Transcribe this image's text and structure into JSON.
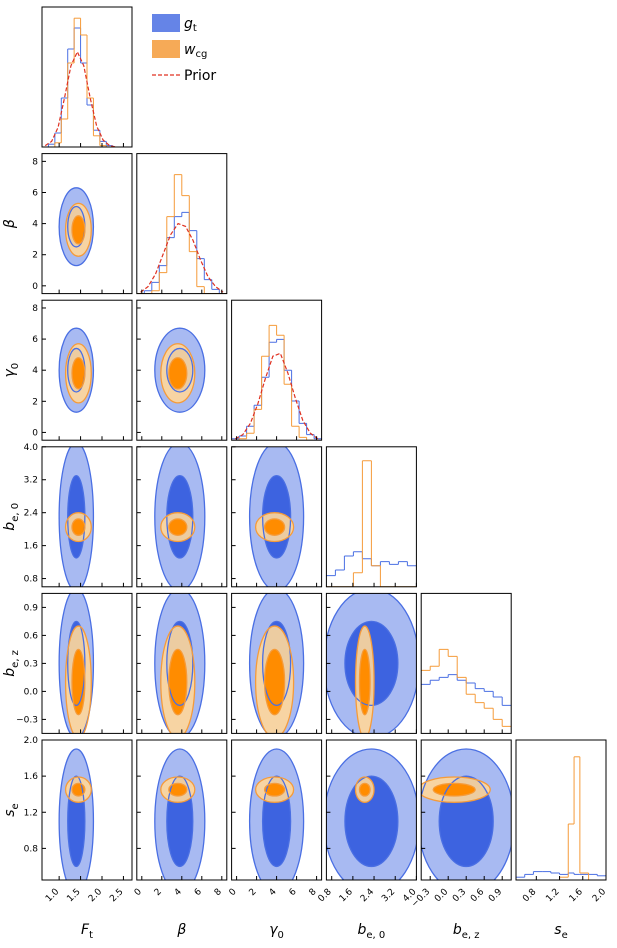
{
  "chart_data": {
    "type": "corner",
    "params": [
      {
        "label": "F",
        "sub": "t",
        "xlim": [
          0.6,
          2.7
        ],
        "ticks": [
          {
            "value": 1,
            "label": "1.0"
          },
          1.5,
          {
            "value": 2,
            "label": "2.0"
          },
          2.5
        ]
      },
      {
        "label": "β",
        "xlim": [
          -0.5,
          8.5
        ],
        "ticks": [
          0,
          2,
          4,
          6,
          8
        ]
      },
      {
        "label": "γ",
        "sub": "0",
        "xlim": [
          -0.5,
          8.5
        ],
        "ticks": [
          0,
          2,
          4,
          6,
          8
        ]
      },
      {
        "label": "b",
        "sub": "e, 0",
        "xlim": [
          0.6,
          4.0
        ],
        "ticks": [
          0.8,
          1.6,
          2.4,
          3.2,
          {
            "value": 4,
            "label": "4.0"
          }
        ]
      },
      {
        "label": "b",
        "sub": "e, z",
        "xlim": [
          -0.45,
          1.05
        ],
        "ticks": [
          {
            "value": -0.3,
            "label": "−0.3"
          },
          {
            "value": 0,
            "label": "0.0"
          },
          0.3,
          0.6,
          0.9
        ]
      },
      {
        "label": "s",
        "sub": "e",
        "xlim": [
          0.45,
          2.0
        ],
        "ticks": [
          0.8,
          1.2,
          1.6,
          {
            "value": 2,
            "label": "2.0"
          }
        ]
      }
    ],
    "series": [
      {
        "name": "g",
        "name_sub": "t",
        "color": "#4a6fe3",
        "fill_inner": "#3d63e0",
        "fill_outer": "#a8baf2",
        "center": [
          1.4,
          3.8,
          4.0,
          2.3,
          0.3,
          1.1
        ],
        "half_width_inner": [
          0.2,
          1.3,
          1.4,
          1.0,
          0.45,
          0.5
        ],
        "half_width_outer": [
          0.4,
          2.5,
          2.7,
          1.8,
          0.8,
          0.8
        ]
      },
      {
        "name": "w",
        "name_sub": "cg",
        "color": "#f59b3a",
        "fill_inner": "#ff8c00",
        "fill_outer": "#ffd79a",
        "center": [
          1.45,
          3.6,
          3.8,
          2.05,
          0.1,
          1.45
        ],
        "half_width_inner": [
          0.15,
          0.9,
          1.0,
          0.2,
          0.35,
          0.07
        ],
        "half_width_outer": [
          0.3,
          1.7,
          1.9,
          0.35,
          0.6,
          0.14
        ]
      },
      {
        "name": "Prior",
        "color": "#e03020",
        "linestyle": "dashed"
      }
    ],
    "histograms": [
      {
        "bins": [
          0.6,
          0.75,
          0.9,
          1.05,
          1.2,
          1.35,
          1.5,
          1.65,
          1.8,
          1.95,
          2.1,
          2.25,
          2.4
        ],
        "ylim": [
          0,
          100
        ],
        "counts": [
          [
            0,
            2,
            10,
            35,
            70,
            85,
            60,
            30,
            12,
            4,
            1,
            0
          ],
          [
            0,
            0,
            3,
            20,
            60,
            92,
            80,
            35,
            8,
            1,
            0,
            0
          ],
          [
            1,
            4,
            14,
            35,
            58,
            68,
            58,
            35,
            15,
            5,
            1,
            0
          ]
        ]
      },
      {
        "bins": [
          -0.5,
          0.25,
          1,
          1.75,
          2.5,
          3.25,
          4,
          4.75,
          5.5,
          6.25,
          7,
          7.75,
          8.5
        ],
        "ylim": [
          0,
          100
        ],
        "counts": [
          [
            0,
            2,
            8,
            20,
            40,
            55,
            58,
            45,
            25,
            10,
            3,
            0
          ],
          [
            0,
            0,
            2,
            15,
            55,
            85,
            70,
            30,
            5,
            0,
            0,
            0
          ],
          [
            1,
            5,
            14,
            28,
            42,
            50,
            48,
            38,
            24,
            12,
            5,
            1
          ]
        ]
      },
      {
        "bins": [
          -0.5,
          0.25,
          1,
          1.75,
          2.5,
          3.25,
          4,
          4.75,
          5.5,
          6.25,
          7,
          7.75,
          8.5
        ],
        "ylim": [
          0,
          100
        ],
        "counts": [
          [
            1,
            3,
            10,
            25,
            45,
            70,
            72,
            50,
            28,
            12,
            4,
            1
          ],
          [
            0,
            1,
            5,
            22,
            60,
            82,
            75,
            40,
            10,
            2,
            0,
            0
          ],
          [
            1,
            4,
            12,
            26,
            44,
            60,
            62,
            48,
            30,
            14,
            5,
            1
          ]
        ]
      },
      {
        "bins": [
          0.6,
          0.94,
          1.28,
          1.62,
          1.96,
          2.3,
          2.64,
          2.98,
          3.32,
          3.66,
          4.0
        ],
        "ylim": [
          0,
          100
        ],
        "counts": [
          [
            8,
            12,
            22,
            25,
            20,
            15,
            18,
            16,
            18,
            15
          ],
          [
            0,
            0,
            0,
            10,
            90,
            15,
            0,
            0,
            0,
            0
          ],
          null
        ]
      },
      {
        "bins": [
          -0.45,
          -0.3,
          -0.15,
          0,
          0.15,
          0.3,
          0.45,
          0.6,
          0.75,
          0.9,
          1.05
        ],
        "ylim": [
          0,
          100
        ],
        "counts": [
          [
            35,
            38,
            40,
            42,
            38,
            36,
            32,
            30,
            26,
            20
          ],
          [
            45,
            48,
            60,
            55,
            40,
            28,
            22,
            18,
            10,
            5
          ],
          null
        ]
      },
      {
        "bins": [
          0.45,
          0.6,
          0.75,
          0.9,
          1.05,
          1.2,
          1.35,
          1.45,
          1.55,
          1.7,
          1.85,
          2.0
        ],
        "ylim": [
          0,
          100
        ],
        "counts": [
          [
            2,
            4,
            6,
            6,
            5,
            4,
            5,
            4,
            4,
            4,
            3
          ],
          [
            0,
            0,
            0,
            0,
            0,
            2,
            40,
            88,
            5,
            0,
            0
          ],
          null
        ]
      }
    ]
  }
}
